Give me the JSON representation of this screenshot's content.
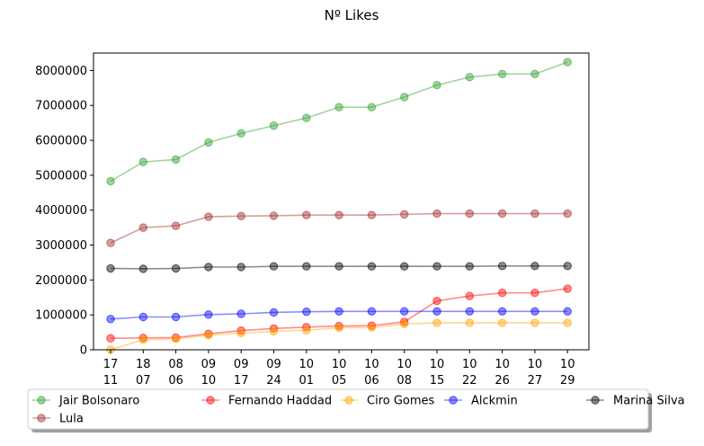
{
  "chart_data": {
    "type": "line",
    "title": "Nº Likes",
    "xlabel": "",
    "ylabel": "",
    "categories": [
      [
        "17",
        "11"
      ],
      [
        "18",
        "07"
      ],
      [
        "08",
        "06"
      ],
      [
        "09",
        "10"
      ],
      [
        "09",
        "17"
      ],
      [
        "09",
        "24"
      ],
      [
        "10",
        "01"
      ],
      [
        "10",
        "05"
      ],
      [
        "10",
        "06"
      ],
      [
        "10",
        "08"
      ],
      [
        "10",
        "15"
      ],
      [
        "10",
        "22"
      ],
      [
        "10",
        "26"
      ],
      [
        "10",
        "27"
      ],
      [
        "10",
        "29"
      ]
    ],
    "ylim": [
      0,
      8500000
    ],
    "yticks": [
      "0",
      "1000000",
      "2000000",
      "3000000",
      "4000000",
      "5000000",
      "6000000",
      "7000000",
      "8000000"
    ],
    "ytick_values": [
      0,
      1000000,
      2000000,
      3000000,
      4000000,
      5000000,
      6000000,
      7000000,
      8000000
    ],
    "grid": false,
    "legend_position": "bottom",
    "series": [
      {
        "name": "Jair Bolsonaro",
        "color": "#2ca02c",
        "values": [
          4830000,
          5380000,
          5450000,
          5940000,
          6200000,
          6420000,
          6640000,
          6950000,
          6950000,
          7240000,
          7580000,
          7810000,
          7900000,
          7900000,
          8240000
        ]
      },
      {
        "name": "Fernando Haddad",
        "color": "#ff0000",
        "values": [
          330000,
          340000,
          350000,
          460000,
          550000,
          610000,
          650000,
          680000,
          690000,
          800000,
          1400000,
          1540000,
          1630000,
          1630000,
          1750000
        ]
      },
      {
        "name": "Ciro Gomes",
        "color": "#ffa500",
        "values": [
          0,
          290000,
          310000,
          420000,
          480000,
          530000,
          560000,
          630000,
          640000,
          740000,
          770000,
          770000,
          770000,
          770000,
          770000
        ]
      },
      {
        "name": "Alckmin",
        "color": "#0000ff",
        "values": [
          880000,
          940000,
          940000,
          1010000,
          1030000,
          1070000,
          1090000,
          1100000,
          1100000,
          1100000,
          1100000,
          1100000,
          1100000,
          1100000,
          1100000
        ]
      },
      {
        "name": "Marina Silva",
        "color": "#000000",
        "values": [
          2330000,
          2320000,
          2330000,
          2370000,
          2370000,
          2390000,
          2390000,
          2390000,
          2390000,
          2390000,
          2390000,
          2390000,
          2400000,
          2400000,
          2400000
        ]
      },
      {
        "name": "Lula",
        "color": "#a52a2a",
        "values": [
          3060000,
          3500000,
          3550000,
          3810000,
          3830000,
          3840000,
          3860000,
          3860000,
          3860000,
          3880000,
          3900000,
          3900000,
          3900000,
          3900000,
          3900000
        ]
      }
    ]
  }
}
